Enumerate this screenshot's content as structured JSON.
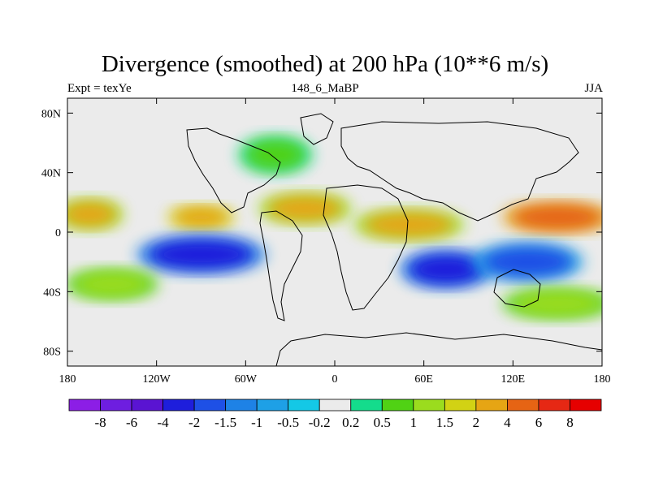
{
  "title": "Divergence (smoothed) at 200 hPa (10**6 m/s)",
  "subtitle_left": "Expt = texYe",
  "subtitle_center": "148_6_MaBP",
  "subtitle_right": "JJA",
  "map": {
    "lon_range": [
      -180,
      180
    ],
    "lat_range": [
      -90,
      90
    ],
    "x_ticks": [
      {
        "value": -180,
        "label": "180"
      },
      {
        "value": -120,
        "label": "120W"
      },
      {
        "value": -60,
        "label": "60W"
      },
      {
        "value": 0,
        "label": "0"
      },
      {
        "value": 60,
        "label": "60E"
      },
      {
        "value": 120,
        "label": "120E"
      },
      {
        "value": 180,
        "label": "180"
      }
    ],
    "y_ticks": [
      {
        "value": 80,
        "label": "80N"
      },
      {
        "value": 40,
        "label": "40N"
      },
      {
        "value": 0,
        "label": "0"
      },
      {
        "value": -40,
        "label": "40S"
      },
      {
        "value": -80,
        "label": "80S"
      }
    ],
    "background_color": "#ebebeb"
  },
  "colorbar": {
    "levels": [
      "-8",
      "-6",
      "-4",
      "-2",
      "-1.5",
      "-1",
      "-0.5",
      "-0.2",
      "0.2",
      "0.5",
      "1",
      "1.5",
      "2",
      "4",
      "6",
      "8"
    ],
    "colors": [
      "#8c1ee6",
      "#6e1ee0",
      "#5a14d2",
      "#1e1edc",
      "#1e50e6",
      "#1e82e6",
      "#1ea0e6",
      "#14c8e6",
      "#ebebeb",
      "#14dc8c",
      "#50d214",
      "#9bdc1e",
      "#d2d214",
      "#e6a514",
      "#e66414",
      "#e62814",
      "#e60000"
    ]
  },
  "field_blobs": [
    {
      "lon": -165,
      "lat": 12,
      "rx": 18,
      "ry": 8,
      "value": 3
    },
    {
      "lon": -90,
      "lat": 10,
      "rx": 18,
      "ry": 6,
      "value": 4
    },
    {
      "lon": -20,
      "lat": 16,
      "rx": 25,
      "ry": 8,
      "value": 2.5
    },
    {
      "lon": 50,
      "lat": 5,
      "rx": 30,
      "ry": 8,
      "value": 2.5
    },
    {
      "lon": 150,
      "lat": 10,
      "rx": 30,
      "ry": 8,
      "value": 5
    },
    {
      "lon": -90,
      "lat": -15,
      "rx": 35,
      "ry": 10,
      "value": -3
    },
    {
      "lon": 75,
      "lat": -25,
      "rx": 25,
      "ry": 10,
      "value": -3
    },
    {
      "lon": 130,
      "lat": -20,
      "rx": 30,
      "ry": 10,
      "value": -1.5
    },
    {
      "lon": -150,
      "lat": -35,
      "rx": 25,
      "ry": 8,
      "value": 1.2
    },
    {
      "lon": 150,
      "lat": -48,
      "rx": 30,
      "ry": 8,
      "value": 1.5
    },
    {
      "lon": -40,
      "lat": 52,
      "rx": 20,
      "ry": 10,
      "value": 1
    }
  ]
}
